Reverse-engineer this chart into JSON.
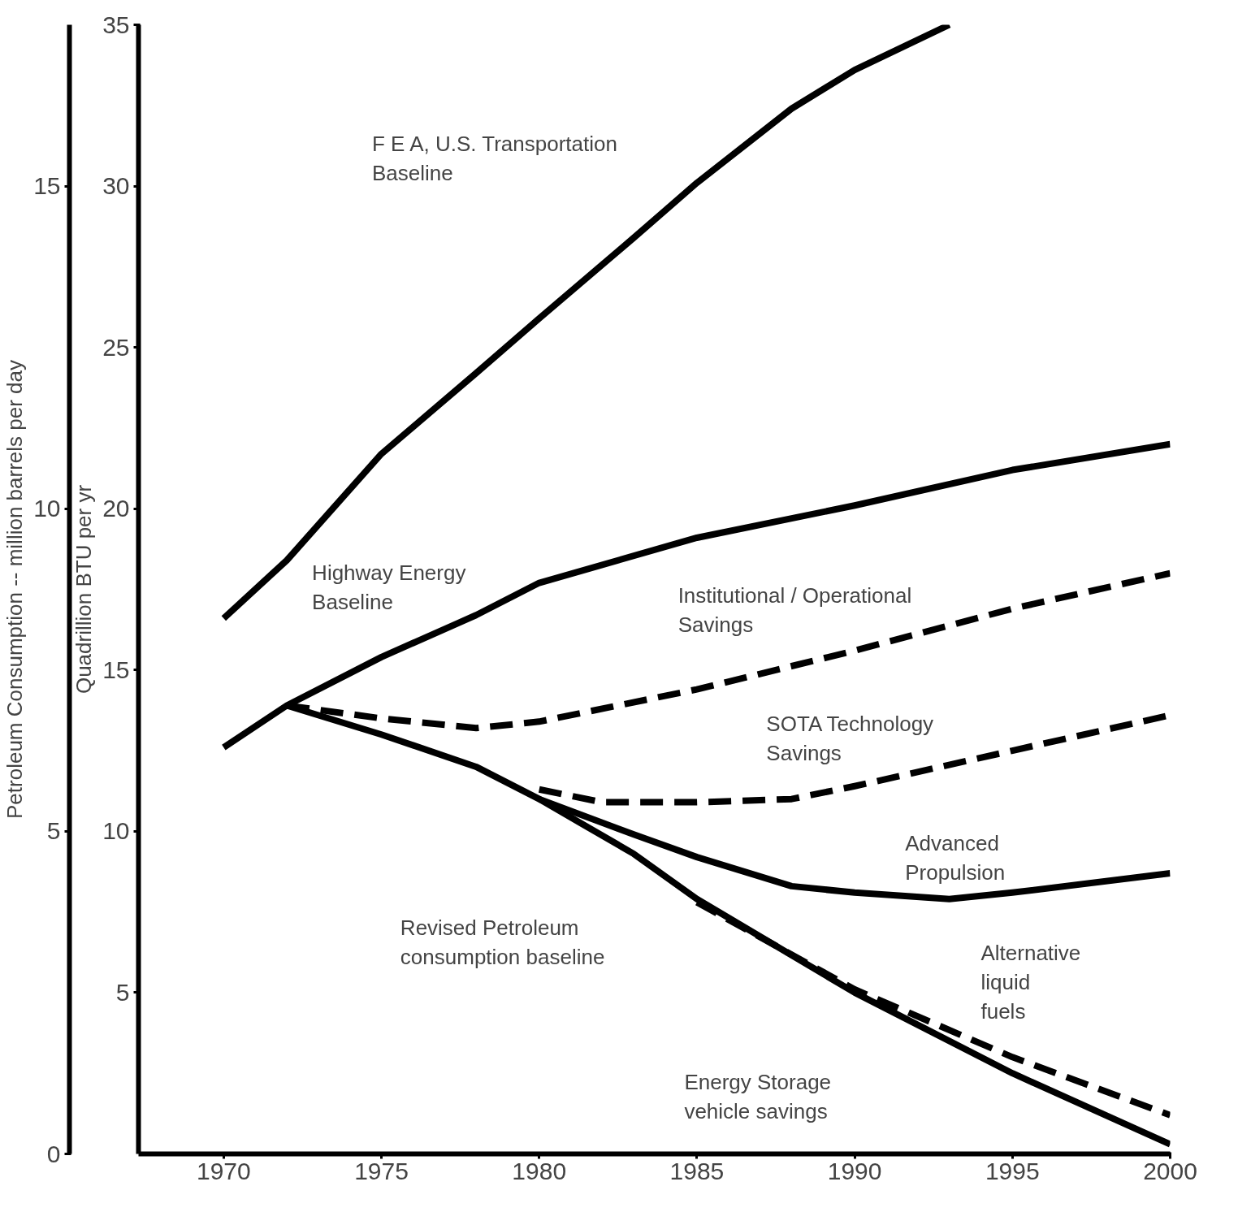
{
  "chart_data": {
    "type": "line",
    "ylabel": "Quadrillion BTU per yr",
    "y2label": "Petroleum Consumption -- million barrels per day",
    "xlim": [
      1967.3,
      2000
    ],
    "xticks": [
      1970,
      1975,
      1980,
      1985,
      1990,
      1995,
      2000
    ],
    "ylim": [
      0,
      35
    ],
    "yticks": [
      5,
      10,
      15,
      20,
      25,
      30,
      35
    ],
    "y2lim": [
      0,
      17.5
    ],
    "y2ticks": [
      0,
      5,
      10,
      15
    ],
    "grid": false,
    "marker": "none",
    "series": [
      {
        "color": "#000000",
        "line_style": "solid",
        "x": [
          1970,
          1972,
          1975,
          1978,
          1980,
          1983,
          1985,
          1988,
          1990,
          1993
        ],
        "values": [
          16.6,
          18.4,
          21.7,
          24.2,
          25.9,
          28.4,
          30.1,
          32.4,
          33.6,
          35
        ]
      },
      {
        "color": "#000000",
        "line_style": "solid",
        "x": [
          1970,
          1972,
          1975,
          1978,
          1980,
          1985,
          1990,
          1995,
          2000
        ],
        "values": [
          12.6,
          13.9,
          15.4,
          16.7,
          17.7,
          19.1,
          20.1,
          21.2,
          22.0
        ]
      },
      {
        "color": "#000000",
        "line_style": "dashed",
        "x": [
          1972,
          1975,
          1978,
          1980,
          1985,
          1990,
          1995,
          2000
        ],
        "values": [
          13.9,
          13.5,
          13.2,
          13.4,
          14.4,
          15.6,
          16.9,
          18.0
        ]
      },
      {
        "color": "#000000",
        "line_style": "solid",
        "x": [
          1972,
          1975,
          1978,
          1980,
          1983,
          1985,
          1990,
          1995,
          2000
        ],
        "values": [
          13.9,
          13.0,
          12.0,
          11.0,
          9.3,
          7.9,
          5.0,
          2.5,
          0.3
        ]
      },
      {
        "color": "#000000",
        "line_style": "dashed",
        "x": [
          1980,
          1982,
          1985,
          1988,
          1990,
          1995,
          2000
        ],
        "values": [
          11.3,
          10.9,
          10.9,
          11.0,
          11.4,
          12.5,
          13.6
        ]
      },
      {
        "color": "#000000",
        "line_style": "solid",
        "x": [
          1980,
          1983,
          1985,
          1988,
          1990,
          1993,
          1995,
          2000
        ],
        "values": [
          11.0,
          9.9,
          9.2,
          8.3,
          8.1,
          7.9,
          8.1,
          8.7
        ]
      },
      {
        "color": "#000000",
        "line_style": "dashed",
        "x": [
          1985,
          1990,
          1995,
          2000
        ],
        "values": [
          7.8,
          5.1,
          3.0,
          1.2
        ]
      }
    ],
    "annotations": [
      "F E A, U.S. Transportation\nBaseline",
      "Highway Energy\nBaseline",
      "Institutional / Operational\nSavings",
      "SOTA Technology\nSavings",
      "Advanced\nPropulsion",
      "Revised Petroleum\nconsumption baseline",
      "Alternative\nliquid\nfuels",
      "Energy Storage\nvehicle savings"
    ]
  }
}
